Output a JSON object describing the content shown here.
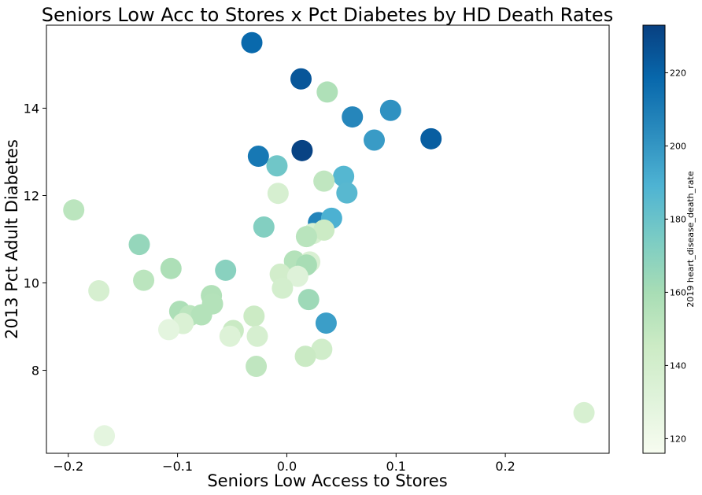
{
  "chart_data": {
    "type": "scatter",
    "title": "Seniors Low Acc to Stores x Pct Diabetes by HD Death Rates",
    "xlabel": "Seniors Low Access to Stores",
    "ylabel": "2013 Pct Adult Diabetes",
    "xlim": [
      -0.22,
      0.295
    ],
    "ylim": [
      6.1,
      15.9
    ],
    "xticks": [
      -0.2,
      -0.1,
      0.0,
      0.1,
      0.2
    ],
    "xtick_labels": [
      "−0.2",
      "−0.1",
      "0.0",
      "0.1",
      "0.2"
    ],
    "yticks": [
      8,
      10,
      12,
      14
    ],
    "ytick_labels": [
      "8",
      "10",
      "12",
      "14"
    ],
    "grid": false,
    "colorbar": {
      "label": "2019 heart_disease_death_rate",
      "range": [
        116,
        233
      ],
      "ticks": [
        120,
        140,
        160,
        180,
        200,
        220
      ],
      "tick_labels": [
        "120",
        "140",
        "160",
        "180",
        "200",
        "220"
      ],
      "colormap": "GnBu",
      "stops": [
        "#f7fcf0",
        "#e0f3db",
        "#ccebc5",
        "#a8ddb5",
        "#7bccc4",
        "#4eb3d3",
        "#2b8cbe",
        "#0868ac",
        "#084081"
      ]
    },
    "points": [
      {
        "x": -0.032,
        "y": 15.5,
        "c": 218
      },
      {
        "x": 0.013,
        "y": 14.67,
        "c": 225
      },
      {
        "x": 0.037,
        "y": 14.37,
        "c": 157
      },
      {
        "x": 0.095,
        "y": 13.95,
        "c": 202
      },
      {
        "x": 0.06,
        "y": 13.8,
        "c": 206
      },
      {
        "x": 0.08,
        "y": 13.27,
        "c": 198
      },
      {
        "x": 0.132,
        "y": 13.3,
        "c": 222
      },
      {
        "x": 0.014,
        "y": 13.03,
        "c": 232
      },
      {
        "x": -0.026,
        "y": 12.9,
        "c": 212
      },
      {
        "x": -0.009,
        "y": 12.68,
        "c": 178
      },
      {
        "x": 0.052,
        "y": 12.44,
        "c": 187
      },
      {
        "x": 0.034,
        "y": 12.33,
        "c": 150
      },
      {
        "x": 0.055,
        "y": 12.06,
        "c": 186
      },
      {
        "x": -0.008,
        "y": 12.05,
        "c": 138
      },
      {
        "x": -0.195,
        "y": 11.67,
        "c": 152
      },
      {
        "x": 0.029,
        "y": 11.38,
        "c": 207
      },
      {
        "x": 0.041,
        "y": 11.48,
        "c": 190
      },
      {
        "x": -0.021,
        "y": 11.28,
        "c": 172
      },
      {
        "x": 0.024,
        "y": 11.13,
        "c": 137
      },
      {
        "x": 0.034,
        "y": 11.21,
        "c": 145
      },
      {
        "x": 0.018,
        "y": 11.06,
        "c": 153
      },
      {
        "x": -0.135,
        "y": 10.88,
        "c": 166
      },
      {
        "x": -0.106,
        "y": 10.33,
        "c": 158
      },
      {
        "x": 0.007,
        "y": 10.5,
        "c": 155
      },
      {
        "x": 0.021,
        "y": 10.48,
        "c": 136
      },
      {
        "x": 0.018,
        "y": 10.41,
        "c": 160
      },
      {
        "x": -0.056,
        "y": 10.29,
        "c": 170
      },
      {
        "x": -0.006,
        "y": 10.2,
        "c": 141
      },
      {
        "x": 0.01,
        "y": 10.15,
        "c": 132
      },
      {
        "x": -0.131,
        "y": 10.06,
        "c": 152
      },
      {
        "x": -0.004,
        "y": 9.88,
        "c": 140
      },
      {
        "x": -0.172,
        "y": 9.82,
        "c": 138
      },
      {
        "x": -0.069,
        "y": 9.71,
        "c": 156
      },
      {
        "x": 0.02,
        "y": 9.62,
        "c": 163
      },
      {
        "x": -0.068,
        "y": 9.52,
        "c": 155
      },
      {
        "x": -0.098,
        "y": 9.35,
        "c": 158
      },
      {
        "x": -0.089,
        "y": 9.25,
        "c": 152
      },
      {
        "x": -0.078,
        "y": 9.27,
        "c": 155
      },
      {
        "x": -0.03,
        "y": 9.24,
        "c": 145
      },
      {
        "x": -0.095,
        "y": 9.07,
        "c": 135
      },
      {
        "x": 0.036,
        "y": 9.08,
        "c": 197
      },
      {
        "x": -0.108,
        "y": 8.93,
        "c": 128
      },
      {
        "x": -0.049,
        "y": 8.91,
        "c": 146
      },
      {
        "x": -0.052,
        "y": 8.78,
        "c": 133
      },
      {
        "x": -0.027,
        "y": 8.78,
        "c": 138
      },
      {
        "x": 0.032,
        "y": 8.48,
        "c": 142
      },
      {
        "x": 0.017,
        "y": 8.32,
        "c": 146
      },
      {
        "x": -0.028,
        "y": 8.09,
        "c": 150
      },
      {
        "x": 0.272,
        "y": 7.03,
        "c": 137
      },
      {
        "x": -0.167,
        "y": 6.5,
        "c": 128
      }
    ]
  }
}
